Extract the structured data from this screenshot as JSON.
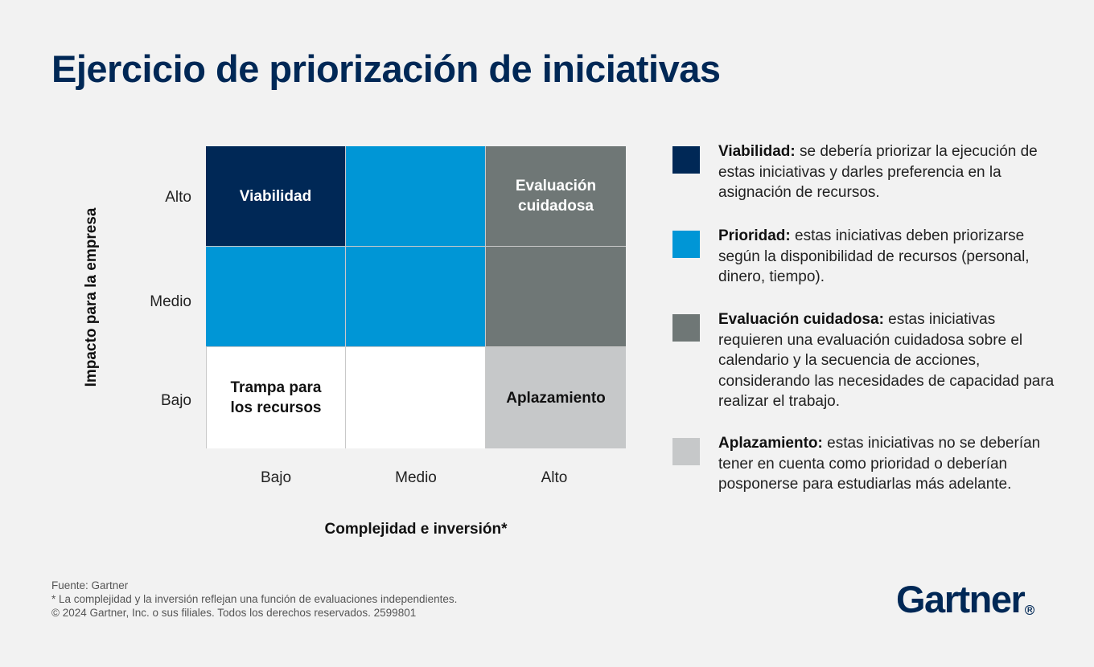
{
  "title": "Ejercicio de priorización de iniciativas",
  "y_axis": {
    "title": "Impacto para la empresa",
    "ticks": [
      "Alto",
      "Medio",
      "Bajo"
    ]
  },
  "x_axis": {
    "title": "Complejidad e inversión*",
    "ticks": [
      "Bajo",
      "Medio",
      "Alto"
    ]
  },
  "matrix": {
    "cell_viabilidad": "Viabilidad",
    "cell_evaluacion": "Evaluación cuidadosa",
    "cell_trampa": "Trampa para los recursos",
    "cell_aplazamiento": "Aplazamiento"
  },
  "colors": {
    "viabilidad": "#002856",
    "prioridad": "#0096d6",
    "evaluacion": "#6f7776",
    "aplazamiento": "#c6c8c9",
    "trampa": "#ffffff"
  },
  "legend": [
    {
      "term": "Viabilidad:",
      "desc": " se debería priorizar la ejecución de estas iniciativas y darles preferencia en la asignación de recursos."
    },
    {
      "term": "Prioridad:",
      "desc": " estas iniciativas deben priorizarse según la disponibilidad de recursos (personal, dinero, tiempo)."
    },
    {
      "term": "Evaluación cuidadosa:",
      "desc": " estas iniciativas requieren una evaluación cuidadosa sobre el calendario y la secuencia de acciones, considerando las necesidades de capacidad para realizar el trabajo."
    },
    {
      "term": "Aplazamiento:",
      "desc": " estas iniciativas no se deberían tener en cuenta como prioridad o deberían posponerse para estudiarlas más adelante."
    }
  ],
  "footer": {
    "source": "Fuente: Gartner",
    "note": "* La complejidad y la inversión reflejan una función de evaluaciones independientes.",
    "copyright": "© 2024 Gartner, Inc. o sus filiales. Todos los derechos reservados. 2599801"
  },
  "logo": {
    "text": "Gartner",
    "mark": "R"
  }
}
